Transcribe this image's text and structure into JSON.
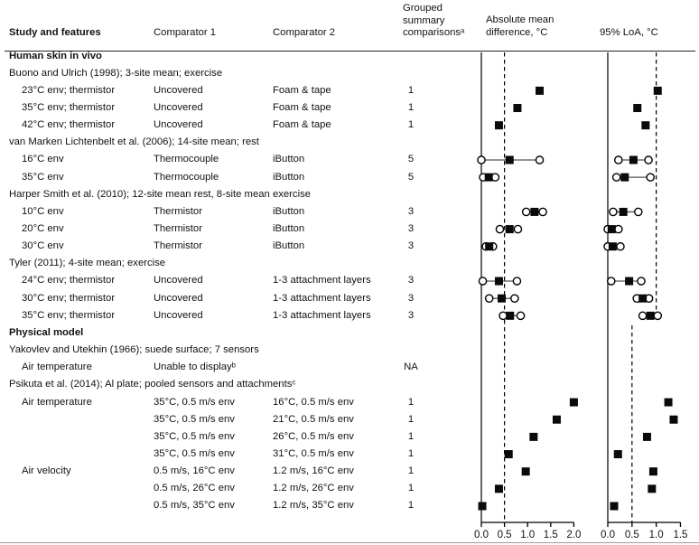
{
  "table": {
    "headers": {
      "study": "Study and features",
      "comparator1": "Comparator 1",
      "comparator2": "Comparator 2",
      "grouped": "Grouped\nsummary\ncomparisonsᵃ",
      "plot1": "Absolute mean\ndifference, °C",
      "plot2": "95% LoA, °C"
    },
    "rows": [
      {
        "type": "section",
        "study": "Human skin in vivo",
        "comp1": "",
        "comp2": "",
        "grouped": ""
      },
      {
        "type": "study",
        "study": "Buono and Ulrich (1998); 3-site mean; exercise",
        "comp1": "",
        "comp2": "",
        "grouped": ""
      },
      {
        "type": "data",
        "study": "23°C env; thermistor",
        "comp1": "Uncovered",
        "comp2": "Foam & tape",
        "grouped": "1"
      },
      {
        "type": "data",
        "study": "35°C env; thermistor",
        "comp1": "Uncovered",
        "comp2": "Foam & tape",
        "grouped": "1"
      },
      {
        "type": "data",
        "study": "42°C env; thermistor",
        "comp1": "Uncovered",
        "comp2": "Foam & tape",
        "grouped": "1"
      },
      {
        "type": "study",
        "study": "van Marken Lichtenbelt et al. (2006); 14-site mean; rest",
        "comp1": "",
        "comp2": "",
        "grouped": ""
      },
      {
        "type": "data",
        "study": "16°C env",
        "comp1": "Thermocouple",
        "comp2": "iButton",
        "grouped": "5"
      },
      {
        "type": "data",
        "study": "35°C env",
        "comp1": "Thermocouple",
        "comp2": "iButton",
        "grouped": "5"
      },
      {
        "type": "study",
        "study": "Harper Smith et al. (2010); 12-site mean rest, 8-site mean exercise",
        "comp1": "",
        "comp2": "",
        "grouped": ""
      },
      {
        "type": "data",
        "study": "10°C env",
        "comp1": "Thermistor",
        "comp2": "iButton",
        "grouped": "3"
      },
      {
        "type": "data",
        "study": "20°C env",
        "comp1": "Thermistor",
        "comp2": "iButton",
        "grouped": "3"
      },
      {
        "type": "data",
        "study": "30°C env",
        "comp1": "Thermistor",
        "comp2": "iButton",
        "grouped": "3"
      },
      {
        "type": "study",
        "study": "Tyler (2011); 4-site mean; exercise",
        "comp1": "",
        "comp2": "",
        "grouped": ""
      },
      {
        "type": "data",
        "study": "24°C env; thermistor",
        "comp1": "Uncovered",
        "comp2": "1-3 attachment layers",
        "grouped": "3"
      },
      {
        "type": "data",
        "study": "30°C env; thermistor",
        "comp1": "Uncovered",
        "comp2": "1-3 attachment layers",
        "grouped": "3"
      },
      {
        "type": "data",
        "study": "35°C env; thermistor",
        "comp1": "Uncovered",
        "comp2": "1-3 attachment layers",
        "grouped": "3"
      },
      {
        "type": "section",
        "study": "Physical model",
        "comp1": "",
        "comp2": "",
        "grouped": ""
      },
      {
        "type": "study",
        "study": "Yakovlev and Utekhin (1966); suede surface; 7 sensors",
        "comp1": "",
        "comp2": "",
        "grouped": ""
      },
      {
        "type": "data",
        "study": "Air temperature",
        "comp1": "Unable to displayᵇ",
        "comp2": "",
        "grouped": "NA"
      },
      {
        "type": "study",
        "study": "Psikuta et al. (2014); Al plate; pooled sensors and attachmentsᶜ",
        "comp1": "",
        "comp2": "",
        "grouped": ""
      },
      {
        "type": "data",
        "study": "Air temperature",
        "comp1": "35°C, 0.5 m/s env",
        "comp2": "16°C, 0.5 m/s env",
        "grouped": "1"
      },
      {
        "type": "data",
        "study": "",
        "comp1": "35°C, 0.5 m/s env",
        "comp2": "21°C, 0.5 m/s env",
        "grouped": "1"
      },
      {
        "type": "data",
        "study": "",
        "comp1": "35°C, 0.5 m/s env",
        "comp2": "26°C, 0.5 m/s env",
        "grouped": "1"
      },
      {
        "type": "data",
        "study": "",
        "comp1": "35°C, 0.5 m/s env",
        "comp2": "31°C, 0.5 m/s env",
        "grouped": "1"
      },
      {
        "type": "data",
        "study": "Air velocity",
        "comp1": "0.5 m/s, 16°C env",
        "comp2": "1.2 m/s, 16°C env",
        "grouped": "1"
      },
      {
        "type": "data",
        "study": "",
        "comp1": "0.5 m/s, 26°C env",
        "comp2": "1.2 m/s, 26°C env",
        "grouped": "1"
      },
      {
        "type": "data",
        "study": "",
        "comp1": "0.5 m/s, 35°C env",
        "comp2": "1.2 m/s, 35°C env",
        "grouped": "1"
      }
    ]
  },
  "chart_data": [
    {
      "type": "scatter",
      "title": "Absolute mean difference, °C",
      "xlim": [
        0.0,
        2.0
      ],
      "xticks": [
        "0.0",
        "0.5",
        "1.0",
        "1.5",
        "2.0"
      ],
      "marker_legend": {
        "square": "mean difference",
        "circles": "range across grouped comparisons"
      },
      "reference_lines": [
        {
          "x": 0.0,
          "style": "solid"
        },
        {
          "x": 0.5,
          "style": "dashed"
        }
      ],
      "points": [
        {
          "row": 2,
          "mean": 1.26
        },
        {
          "row": 3,
          "mean": 0.78
        },
        {
          "row": 4,
          "mean": 0.38
        },
        {
          "row": 6,
          "lo": 0.0,
          "mean": 0.61,
          "hi": 1.26
        },
        {
          "row": 7,
          "lo": 0.04,
          "mean": 0.16,
          "hi": 0.3
        },
        {
          "row": 9,
          "lo": 0.97,
          "mean": 1.15,
          "hi": 1.33
        },
        {
          "row": 10,
          "lo": 0.4,
          "mean": 0.61,
          "hi": 0.79
        },
        {
          "row": 11,
          "lo": 0.1,
          "mean": 0.17,
          "hi": 0.25
        },
        {
          "row": 13,
          "lo": 0.03,
          "mean": 0.38,
          "hi": 0.77
        },
        {
          "row": 14,
          "lo": 0.17,
          "mean": 0.44,
          "hi": 0.72
        },
        {
          "row": 15,
          "lo": 0.47,
          "mean": 0.62,
          "hi": 0.85
        },
        {
          "row": 20,
          "mean": 2.0
        },
        {
          "row": 21,
          "mean": 1.63
        },
        {
          "row": 22,
          "mean": 1.13
        },
        {
          "row": 23,
          "mean": 0.59
        },
        {
          "row": 24,
          "mean": 0.96
        },
        {
          "row": 25,
          "mean": 0.38
        },
        {
          "row": 26,
          "mean": 0.02
        }
      ]
    },
    {
      "type": "scatter",
      "title": "95% LoA, °C",
      "xlim": [
        0.0,
        1.5
      ],
      "xticks": [
        "0.0",
        "0.5",
        "1.0",
        "1.5"
      ],
      "marker_legend": {
        "square": "95% limits of agreement",
        "circles": "range across grouped comparisons"
      },
      "reference_lines": [
        {
          "x": 0.0,
          "style": "solid"
        },
        {
          "x": 1.0,
          "style": "dashed",
          "row_start": 0,
          "row_end": 15
        },
        {
          "x": 0.5,
          "style": "dashed",
          "row_start": 16,
          "row_end": 26
        }
      ],
      "points": [
        {
          "row": 2,
          "mean": 1.03
        },
        {
          "row": 3,
          "mean": 0.61
        },
        {
          "row": 4,
          "mean": 0.78
        },
        {
          "row": 6,
          "lo": 0.22,
          "mean": 0.53,
          "hi": 0.84
        },
        {
          "row": 7,
          "lo": 0.18,
          "mean": 0.35,
          "hi": 0.88
        },
        {
          "row": 9,
          "lo": 0.11,
          "mean": 0.32,
          "hi": 0.63
        },
        {
          "row": 10,
          "lo": 0.0,
          "mean": 0.08,
          "hi": 0.22
        },
        {
          "row": 11,
          "lo": 0.0,
          "mean": 0.1,
          "hi": 0.26
        },
        {
          "row": 13,
          "lo": 0.07,
          "mean": 0.44,
          "hi": 0.69
        },
        {
          "row": 14,
          "lo": 0.6,
          "mean": 0.72,
          "hi": 0.85
        },
        {
          "row": 15,
          "lo": 0.72,
          "mean": 0.88,
          "hi": 1.03
        },
        {
          "row": 20,
          "mean": 1.25
        },
        {
          "row": 21,
          "mean": 1.36
        },
        {
          "row": 22,
          "mean": 0.81
        },
        {
          "row": 23,
          "mean": 0.21
        },
        {
          "row": 24,
          "mean": 0.94
        },
        {
          "row": 25,
          "mean": 0.91
        },
        {
          "row": 26,
          "mean": 0.13
        }
      ]
    }
  ]
}
